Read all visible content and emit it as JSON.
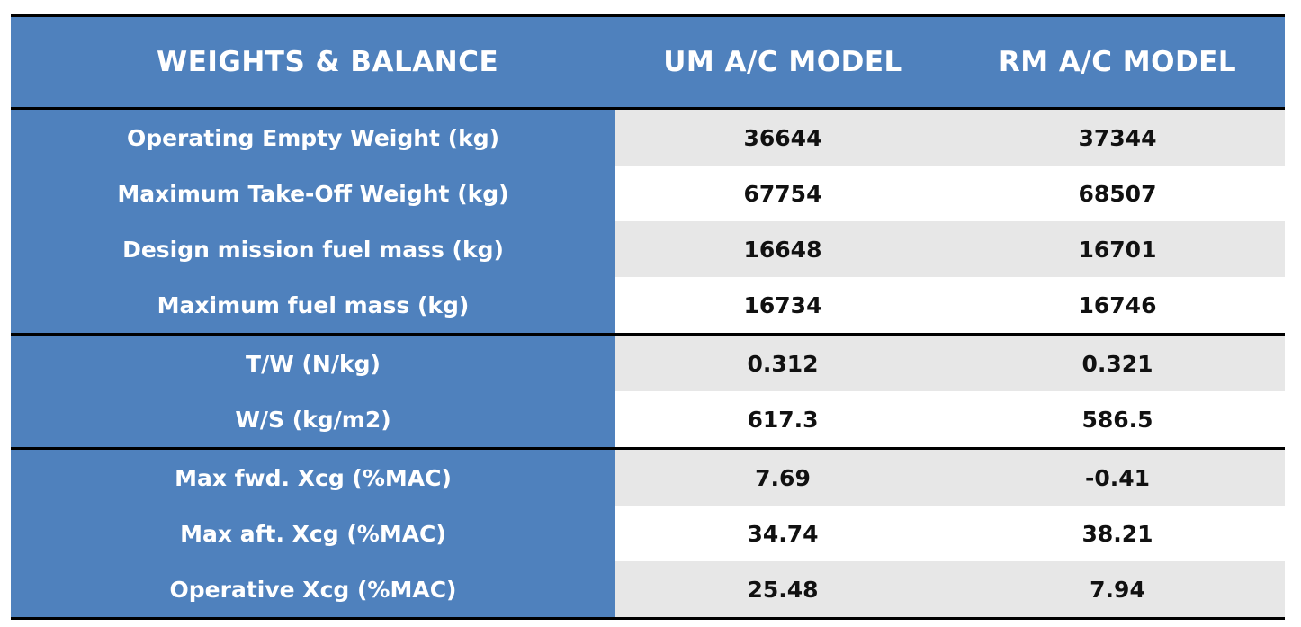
{
  "header": {
    "col1": "WEIGHTS & BALANCE",
    "col2": "UM A/C MODEL",
    "col3": "RM A/C MODEL"
  },
  "rows": [
    {
      "label": "Operating Empty Weight (kg)",
      "um": "36644",
      "rm": "37344"
    },
    {
      "label": "Maximum Take-Off Weight (kg)",
      "um": "67754",
      "rm": "68507"
    },
    {
      "label": "Design mission fuel mass (kg)",
      "um": "16648",
      "rm": "16701"
    },
    {
      "label": "Maximum fuel mass (kg)",
      "um": "16734",
      "rm": "16746"
    },
    {
      "label": "T/W (N/kg)",
      "um": "0.312",
      "rm": "0.321"
    },
    {
      "label": "W/S (kg/m2)",
      "um": "617.3",
      "rm": "586.5"
    },
    {
      "label": "Max fwd. Xcg (%MAC)",
      "um": "7.69",
      "rm": "-0.41"
    },
    {
      "label": "Max aft. Xcg (%MAC)",
      "um": "34.74",
      "rm": "38.21"
    },
    {
      "label": "Operative Xcg (%MAC)",
      "um": "25.48",
      "rm": "7.94"
    }
  ],
  "colors": {
    "header_bg": "#4f81bd",
    "label_bg": "#4f81bd",
    "alt_row_bg": "#e7e7e7"
  }
}
